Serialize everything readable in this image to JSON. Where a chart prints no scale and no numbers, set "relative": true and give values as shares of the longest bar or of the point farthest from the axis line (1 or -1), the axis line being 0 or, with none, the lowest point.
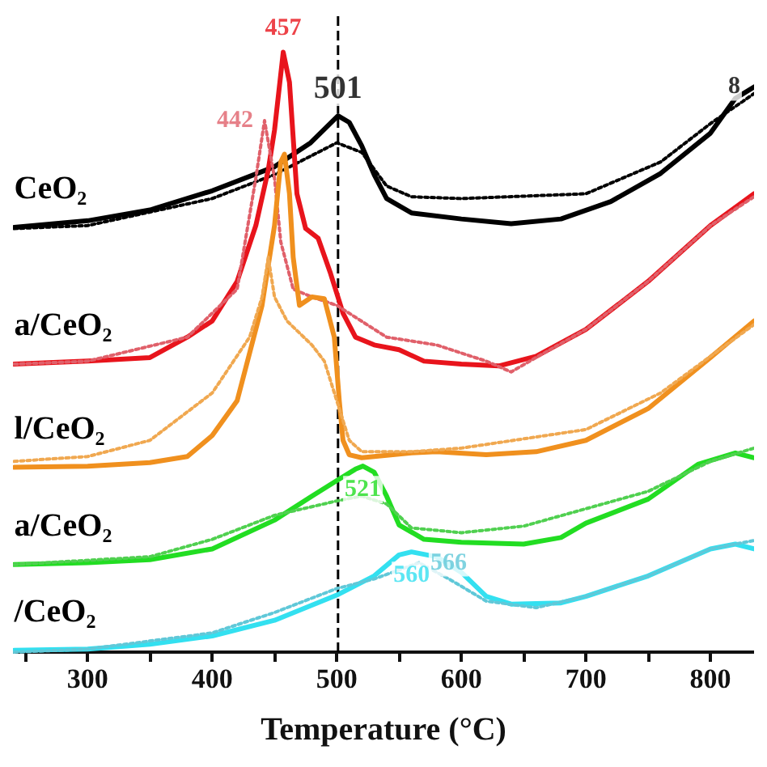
{
  "chart_data": {
    "type": "line",
    "relative": true,
    "xlabel": "Temperature (°C)",
    "xlim": [
      240,
      835
    ],
    "xticks": [
      {
        "value": 250,
        "label": null
      },
      300,
      {
        "value": 350,
        "label": null
      },
      400,
      {
        "value": 450,
        "label": null
      },
      500,
      {
        "value": 550,
        "label": null
      },
      600,
      {
        "value": 650,
        "label": null
      },
      700,
      {
        "value": 750,
        "label": null
      },
      800
    ],
    "grid": false,
    "legend": false,
    "marker": "none",
    "line_style": "solid",
    "series": [
      {
        "name": "CeO₂",
        "color": "#000000",
        "x": [
          241,
          300,
          350,
          400,
          450,
          479,
          501,
          510,
          520,
          530,
          540,
          560,
          600,
          640,
          680,
          720,
          760,
          800,
          820,
          835
        ],
        "values": [
          0.708,
          0.719,
          0.737,
          0.769,
          0.809,
          0.849,
          0.894,
          0.883,
          0.844,
          0.796,
          0.756,
          0.732,
          0.722,
          0.714,
          0.722,
          0.751,
          0.798,
          0.865,
          0.923,
          0.942
        ]
      },
      {
        "color": "#000000",
        "line_style": "dotted",
        "x": [
          241,
          300,
          400,
          450,
          500,
          520,
          540,
          560,
          600,
          700,
          760,
          800,
          835
        ],
        "values": [
          0.706,
          0.711,
          0.756,
          0.796,
          0.849,
          0.833,
          0.777,
          0.759,
          0.756,
          0.764,
          0.817,
          0.881,
          0.931
        ]
      },
      {
        "name": "a/CeO₂",
        "color": "#e8141c",
        "x": [
          241,
          300,
          350,
          380,
          400,
          420,
          435,
          445,
          450,
          457,
          462,
          468,
          475,
          485,
          495,
          505,
          515,
          530,
          550,
          570,
          600,
          630,
          660,
          700,
          750,
          800,
          835
        ],
        "values": [
          0.48,
          0.485,
          0.491,
          0.525,
          0.552,
          0.618,
          0.711,
          0.804,
          0.87,
          1,
          0.95,
          0.764,
          0.706,
          0.69,
          0.631,
          0.565,
          0.525,
          0.512,
          0.504,
          0.485,
          0.48,
          0.477,
          0.493,
          0.538,
          0.618,
          0.711,
          0.764
        ]
      },
      {
        "color": "#e0606a",
        "line_style": "dotted",
        "x": [
          241,
          300,
          380,
          420,
          435,
          442,
          450,
          455,
          465,
          480,
          500,
          540,
          580,
          620,
          640,
          660,
          700,
          750,
          800,
          835
        ],
        "values": [
          0.48,
          0.485,
          0.525,
          0.605,
          0.79,
          0.886,
          0.79,
          0.684,
          0.605,
          0.592,
          0.578,
          0.525,
          0.512,
          0.485,
          0.467,
          0.491,
          0.538,
          0.618,
          0.711,
          0.759
        ]
      },
      {
        "name": "l/CeO₂",
        "color": "#f0901e",
        "x": [
          241,
          300,
          350,
          380,
          400,
          420,
          440,
          450,
          455,
          458,
          462,
          465,
          470,
          480,
          490,
          498,
          502,
          505,
          510,
          520,
          560,
          580,
          620,
          660,
          700,
          750,
          800,
          835
        ],
        "values": [
          0.308,
          0.31,
          0.316,
          0.326,
          0.361,
          0.419,
          0.578,
          0.711,
          0.817,
          0.83,
          0.764,
          0.658,
          0.578,
          0.592,
          0.589,
          0.525,
          0.419,
          0.353,
          0.329,
          0.324,
          0.332,
          0.334,
          0.329,
          0.334,
          0.353,
          0.406,
          0.491,
          0.552
        ]
      },
      {
        "color": "#f0a850",
        "line_style": "dotted",
        "x": [
          241,
          300,
          350,
          400,
          430,
          440,
          445,
          450,
          460,
          480,
          490,
          500,
          510,
          520,
          560,
          600,
          700,
          760,
          800,
          835
        ],
        "values": [
          0.318,
          0.326,
          0.353,
          0.432,
          0.525,
          0.592,
          0.658,
          0.592,
          0.552,
          0.512,
          0.485,
          0.419,
          0.353,
          0.334,
          0.334,
          0.34,
          0.371,
          0.432,
          0.493,
          0.546
        ]
      },
      {
        "name": "a/CeO₂",
        "color": "#22dd22",
        "x": [
          241,
          300,
          350,
          400,
          450,
          480,
          500,
          515,
          521,
          530,
          540,
          550,
          570,
          600,
          650,
          680,
          700,
          750,
          790,
          820,
          835
        ],
        "values": [
          0.146,
          0.149,
          0.154,
          0.172,
          0.22,
          0.26,
          0.286,
          0.305,
          0.31,
          0.3,
          0.26,
          0.212,
          0.188,
          0.183,
          0.18,
          0.191,
          0.215,
          0.255,
          0.313,
          0.332,
          0.324
        ]
      },
      {
        "color": "#50d050",
        "line_style": "dotted",
        "x": [
          241,
          350,
          400,
          450,
          500,
          520,
          540,
          560,
          600,
          650,
          700,
          750,
          800,
          835
        ],
        "values": [
          0.146,
          0.159,
          0.188,
          0.228,
          0.252,
          0.26,
          0.247,
          0.207,
          0.199,
          0.21,
          0.239,
          0.268,
          0.318,
          0.34
        ]
      },
      {
        "name": "/CeO₂",
        "color": "#33e0f0",
        "x": [
          241,
          300,
          350,
          400,
          450,
          500,
          530,
          550,
          560,
          580,
          600,
          620,
          640,
          680,
          700,
          750,
          800,
          820,
          835
        ],
        "values": [
          0.003,
          0.005,
          0.013,
          0.027,
          0.053,
          0.095,
          0.127,
          0.162,
          0.167,
          0.159,
          0.133,
          0.093,
          0.08,
          0.082,
          0.093,
          0.127,
          0.172,
          0.18,
          0.172
        ]
      },
      {
        "color": "#60c8d8",
        "line_style": "dotted",
        "x": [
          241,
          300,
          400,
          450,
          500,
          530,
          566,
          590,
          620,
          660,
          700,
          750,
          800,
          835
        ],
        "values": [
          0,
          0.005,
          0.032,
          0.066,
          0.106,
          0.122,
          0.149,
          0.122,
          0.085,
          0.074,
          0.093,
          0.127,
          0.172,
          0.186
        ]
      }
    ],
    "ref_lines": [
      {
        "axis": "x",
        "value": 501,
        "color": "#000000",
        "line_style": "dashed"
      }
    ],
    "annotations": [
      {
        "text": "457",
        "x": 457,
        "y": 1
      },
      {
        "text": "442",
        "x": 442,
        "y": 0.886
      },
      {
        "text": "501",
        "x": 501,
        "y": 0.894
      },
      {
        "text": "521",
        "x": 521,
        "y": 0.31
      },
      {
        "text": "560",
        "x": 560,
        "y": 0.167
      },
      {
        "text": "566",
        "x": 566,
        "y": 0.149
      },
      {
        "text": "8",
        "x": 833,
        "y": 0.942
      }
    ]
  }
}
